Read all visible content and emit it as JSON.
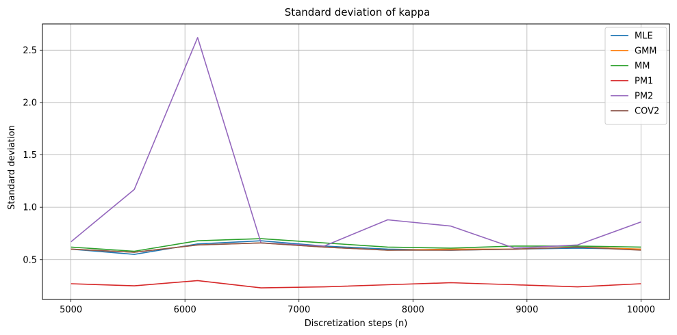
{
  "chart_data": {
    "type": "line",
    "title": "Standard deviation of kappa",
    "xlabel": "Discretization steps (n)",
    "ylabel": "Standard deviation",
    "xlim": [
      4750,
      10250
    ],
    "ylim": [
      0.12,
      2.75
    ],
    "xticks": [
      5000,
      6000,
      7000,
      8000,
      9000,
      10000
    ],
    "yticks": [
      0.5,
      1.0,
      1.5,
      2.0,
      2.5
    ],
    "ytick_labels": [
      "0.5",
      "1.0",
      "1.5",
      "2.0",
      "2.5"
    ],
    "grid": true,
    "legend_position": "top-right",
    "x": [
      5000,
      5556,
      6111,
      6667,
      7222,
      7778,
      8333,
      8889,
      9444,
      10000
    ],
    "series": [
      {
        "name": "MLE",
        "color": "#1f77b4",
        "values": [
          0.6,
          0.55,
          0.65,
          0.68,
          0.63,
          0.6,
          0.59,
          0.6,
          0.61,
          0.6
        ]
      },
      {
        "name": "GMM",
        "color": "#ff7f0e",
        "values": [
          0.6,
          0.57,
          0.64,
          0.66,
          0.62,
          0.59,
          0.6,
          0.6,
          0.62,
          0.6
        ]
      },
      {
        "name": "MM",
        "color": "#2ca02c",
        "values": [
          0.62,
          0.58,
          0.68,
          0.7,
          0.66,
          0.62,
          0.61,
          0.63,
          0.63,
          0.62
        ]
      },
      {
        "name": "PM1",
        "color": "#d62728",
        "values": [
          0.27,
          0.25,
          0.3,
          0.23,
          0.24,
          0.26,
          0.28,
          0.26,
          0.24,
          0.27
        ]
      },
      {
        "name": "PM2",
        "color": "#9467bd",
        "values": [
          0.67,
          1.17,
          2.62,
          0.66,
          0.63,
          0.88,
          0.82,
          0.61,
          0.64,
          0.86
        ]
      },
      {
        "name": "COV2",
        "color": "#8c564b",
        "values": [
          0.6,
          0.57,
          0.64,
          0.66,
          0.62,
          0.59,
          0.59,
          0.6,
          0.62,
          0.59
        ]
      }
    ]
  }
}
